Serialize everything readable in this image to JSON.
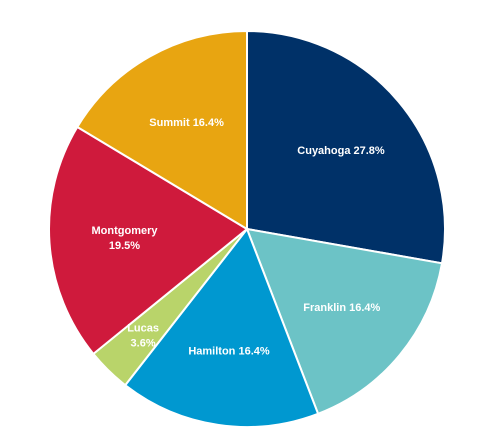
{
  "chart_data": {
    "type": "pie",
    "title": "",
    "start": "12 o'clock",
    "direction": "clockwise",
    "slices": [
      {
        "name": "Cuyahoga",
        "value": 27.8,
        "label_lines": [
          "Cuyahoga 27.8%"
        ],
        "color": "#003168"
      },
      {
        "name": "Franklin",
        "value": 16.4,
        "label_lines": [
          "Franklin 16.4%"
        ],
        "color": "#6cc3c6"
      },
      {
        "name": "Hamilton",
        "value": 16.4,
        "label_lines": [
          "Hamilton 16.4%"
        ],
        "color": "#0098d0"
      },
      {
        "name": "Lucas",
        "value": 3.6,
        "label_lines": [
          "Lucas",
          "3.6%"
        ],
        "color": "#b9d46a"
      },
      {
        "name": "Montgomery",
        "value": 19.5,
        "label_lines": [
          "Montgomery",
          "19.5%"
        ],
        "color": "#cf1a3c"
      },
      {
        "name": "Summit",
        "value": 16.4,
        "label_lines": [
          "Summit 16.4%"
        ],
        "color": "#e8a511"
      }
    ]
  }
}
